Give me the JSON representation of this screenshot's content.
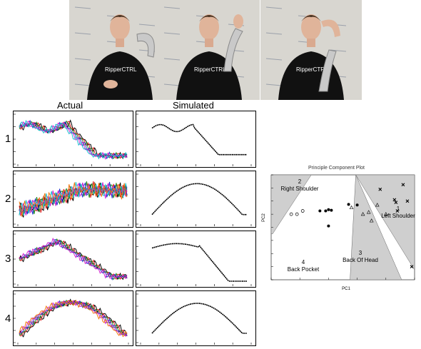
{
  "photos": [
    {
      "shirt_text": "RipperCTRL",
      "gesture": "right-shoulder"
    },
    {
      "shirt_text": "RipperCTRL",
      "gesture": "back-of-head-up"
    },
    {
      "shirt_text": "RipperCTRL",
      "gesture": "back-of-head"
    }
  ],
  "columns": {
    "actual": "Actual",
    "simulated": "Simulated"
  },
  "rows": [
    "1",
    "2",
    "3",
    "4"
  ],
  "pca": {
    "title": "Principle Component Plot",
    "xlabel": "PC1",
    "ylabel": "PC2",
    "regions": [
      {
        "label_line1": "2",
        "label_line2": "Right Shoulder"
      },
      {
        "label_line1": "1",
        "label_line2": "Left Shoulder"
      },
      {
        "label_line1": "3",
        "label_line2": "Back Of Head"
      },
      {
        "label_line1": "4",
        "label_line2": "Back Pocket"
      }
    ]
  },
  "colors": {
    "region_fill": "#cfcfcf",
    "photo_bg": "#d8d6d0",
    "shirt": "#111111"
  },
  "chart_data": [
    {
      "type": "line",
      "title": "Actual",
      "rows": [
        {
          "row": "1",
          "shape": "plateau-then-drop",
          "series": [
            "black",
            "red",
            "green",
            "blue",
            "magenta",
            "cyan"
          ]
        },
        {
          "row": "2",
          "shape": "noisy-rise",
          "series": [
            "black",
            "red",
            "green",
            "blue",
            "magenta",
            "cyan",
            "orange"
          ]
        },
        {
          "row": "3",
          "shape": "peak-then-drop",
          "series": [
            "black",
            "red",
            "green",
            "blue",
            "magenta"
          ]
        },
        {
          "row": "4",
          "shape": "rise-then-fall",
          "series": [
            "black",
            "red",
            "green",
            "blue",
            "magenta",
            "orange"
          ]
        }
      ]
    },
    {
      "type": "line",
      "title": "Simulated",
      "rows": [
        {
          "row": "1",
          "shape": "plateau-then-drop"
        },
        {
          "row": "2",
          "shape": "rise-then-fall"
        },
        {
          "row": "3",
          "shape": "peak-then-drop-recover"
        },
        {
          "row": "4",
          "shape": "rise-then-fall"
        }
      ]
    },
    {
      "type": "scatter",
      "title": "Principle Component Plot",
      "xlabel": "PC1",
      "ylabel": "PC2",
      "xlim": [
        -4,
        1
      ],
      "ylim": [
        -1,
        0.6
      ],
      "series": [
        {
          "name": "Right Shoulder",
          "marker": "o",
          "points": [
            [
              -3.3,
              0.0
            ],
            [
              -3.1,
              0.0
            ],
            [
              -2.9,
              0.05
            ]
          ]
        },
        {
          "name": "Back Pocket",
          "marker": "dot",
          "points": [
            [
              -2.3,
              0.05
            ],
            [
              -2.1,
              0.05
            ],
            [
              -2.0,
              0.07
            ],
            [
              -1.9,
              0.06
            ],
            [
              -2.0,
              -0.18
            ],
            [
              -1.3,
              0.15
            ],
            [
              -1.0,
              0.14
            ]
          ]
        },
        {
          "name": "Back Of Head",
          "marker": "triangle",
          "points": [
            [
              -1.2,
              0.1
            ],
            [
              -0.8,
              0.0
            ],
            [
              -0.6,
              0.03
            ],
            [
              -0.3,
              0.14
            ],
            [
              -0.5,
              -0.1
            ],
            [
              0.0,
              0.0
            ]
          ]
        },
        {
          "name": "Left Shoulder",
          "marker": "x",
          "points": [
            [
              -0.2,
              0.38
            ],
            [
              0.3,
              0.22
            ],
            [
              0.35,
              0.18
            ],
            [
              0.6,
              0.45
            ],
            [
              0.75,
              0.2
            ],
            [
              0.4,
              0.05
            ],
            [
              0.9,
              -0.8
            ]
          ]
        }
      ]
    }
  ]
}
